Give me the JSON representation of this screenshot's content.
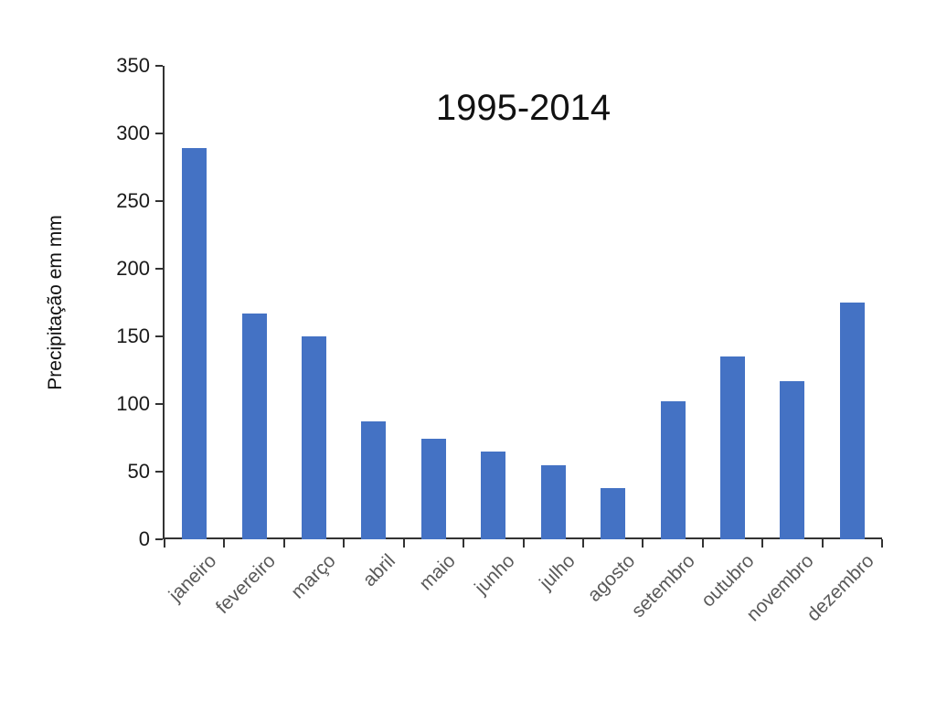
{
  "chart_data": {
    "type": "bar",
    "title": "1995-2014",
    "xlabel": "",
    "ylabel": "Precipitação em mm",
    "categories": [
      "janeiro",
      "fevereiro",
      "março",
      "abril",
      "maio",
      "junho",
      "julho",
      "agosto",
      "setembro",
      "outubro",
      "novembro",
      "dezembro"
    ],
    "values": [
      289,
      167,
      150,
      87,
      74,
      65,
      55,
      38,
      102,
      135,
      117,
      175
    ],
    "ylim": [
      0,
      350
    ],
    "yticks": [
      0,
      50,
      100,
      150,
      200,
      250,
      300,
      350
    ],
    "grid": false,
    "legend": "none",
    "bar_color": "#4472C4",
    "axis_color": "#333333",
    "xtick_label_color": "#595959",
    "ytick_label_color": "#1a1a1a",
    "title_color": "#111111"
  }
}
